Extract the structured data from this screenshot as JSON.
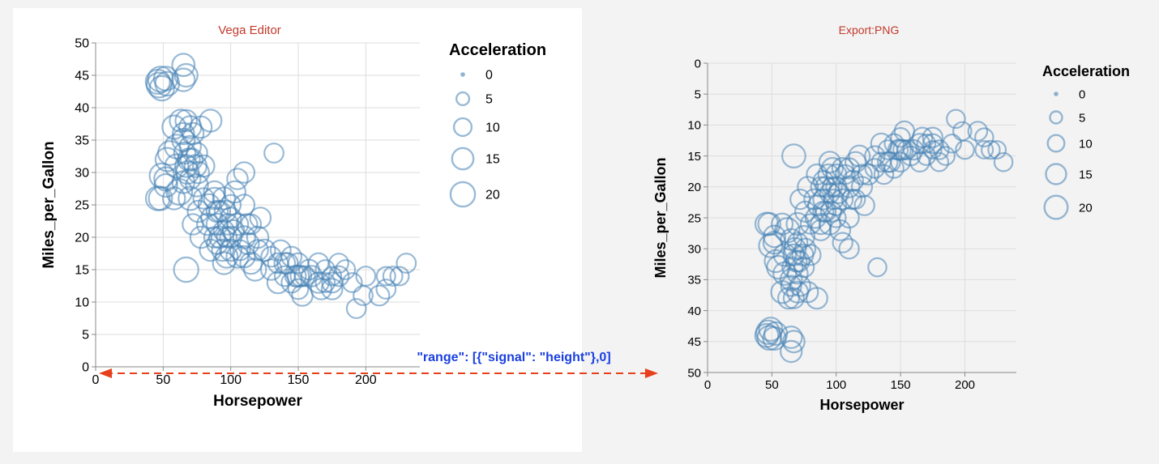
{
  "annotation": {
    "text": "\"range\": [{\"signal\": \"height\"},0]",
    "arrow_color": "#e8401c",
    "text_color": "#1a3fe0"
  },
  "colors": {
    "point_stroke": "#4682b4",
    "panel_title": "#c0392b",
    "left_panel_bg": "#ffffff",
    "right_panel_bg": "#f3f3f3"
  },
  "chart_data": [
    {
      "type": "scatter",
      "title": "Vega Editor",
      "xlabel": "Horsepower",
      "ylabel": "Miles_per_Gallon",
      "xlim": [
        0,
        240
      ],
      "ylim": [
        0,
        50
      ],
      "y_reversed": false,
      "grid": true,
      "x_ticks": [
        "0",
        "50",
        "100",
        "150",
        "200"
      ],
      "y_ticks": [
        "0",
        "5",
        "10",
        "15",
        "20",
        "25",
        "30",
        "35",
        "40",
        "45",
        "50"
      ],
      "legend": {
        "title": "Acceleration",
        "position": "right",
        "labels": [
          "0",
          "5",
          "10",
          "15",
          "20"
        ],
        "values": [
          0,
          5,
          10,
          15,
          20
        ]
      },
      "size_field": "Acceleration",
      "points": [
        [
          46,
          44,
          19.5
        ],
        [
          47,
          43.5,
          20.5
        ],
        [
          48,
          44.4,
          21
        ],
        [
          49,
          43,
          20
        ],
        [
          52,
          44.5,
          19
        ],
        [
          53,
          43.7,
          19
        ],
        [
          65,
          44.3,
          17
        ],
        [
          65,
          46.6,
          16.5
        ],
        [
          67,
          45,
          17
        ],
        [
          46,
          26,
          19
        ],
        [
          48,
          26,
          18
        ],
        [
          49,
          29.5,
          20
        ],
        [
          52,
          29,
          18
        ],
        [
          53,
          32,
          18
        ],
        [
          55,
          33,
          19
        ],
        [
          58,
          37,
          18
        ],
        [
          60,
          34,
          19
        ],
        [
          60,
          31,
          18
        ],
        [
          62,
          27,
          22
        ],
        [
          63,
          38,
          16
        ],
        [
          65,
          35,
          17
        ],
        [
          65,
          28.5,
          16
        ],
        [
          65,
          36,
          15
        ],
        [
          66,
          33,
          15
        ],
        [
          67,
          31,
          16
        ],
        [
          67,
          38,
          15
        ],
        [
          68,
          30,
          17
        ],
        [
          69,
          32,
          16
        ],
        [
          70,
          34,
          15
        ],
        [
          70,
          29,
          14
        ],
        [
          70,
          37,
          16
        ],
        [
          70,
          26,
          18
        ],
        [
          71,
          32,
          16
        ],
        [
          72,
          36,
          15
        ],
        [
          74,
          31,
          16
        ],
        [
          75,
          28,
          16
        ],
        [
          75,
          33,
          14
        ],
        [
          76,
          30,
          15
        ],
        [
          78,
          37,
          15
        ],
        [
          80,
          31,
          15
        ],
        [
          85,
          38,
          16
        ],
        [
          88,
          27,
          15
        ],
        [
          90,
          24,
          15
        ],
        [
          67,
          15,
          20
        ],
        [
          52,
          28,
          17
        ],
        [
          58,
          26,
          16
        ],
        [
          72,
          22,
          14
        ],
        [
          76,
          24,
          15
        ],
        [
          78,
          20,
          15
        ],
        [
          80,
          26,
          14
        ],
        [
          83,
          22,
          15
        ],
        [
          84,
          25,
          15
        ],
        [
          85,
          18,
          15
        ],
        [
          86,
          23,
          15
        ],
        [
          88,
          20,
          14
        ],
        [
          88,
          26,
          15
        ],
        [
          90,
          19,
          14
        ],
        [
          90,
          22,
          15
        ],
        [
          92,
          20,
          15
        ],
        [
          92,
          24,
          14
        ],
        [
          94,
          18,
          15
        ],
        [
          95,
          21,
          14
        ],
        [
          95,
          26,
          16
        ],
        [
          95,
          16,
          16
        ],
        [
          96,
          24,
          15
        ],
        [
          97,
          20,
          13
        ],
        [
          97,
          17,
          16
        ],
        [
          98,
          22,
          14
        ],
        [
          100,
          18,
          15
        ],
        [
          100,
          20,
          15
        ],
        [
          100,
          23,
          14
        ],
        [
          100,
          25,
          13
        ],
        [
          102,
          21,
          15
        ],
        [
          103,
          27,
          15
        ],
        [
          105,
          22,
          15
        ],
        [
          105,
          17,
          16
        ],
        [
          105,
          29,
          14
        ],
        [
          107,
          18,
          13
        ],
        [
          110,
          20,
          16
        ],
        [
          110,
          25,
          14
        ],
        [
          110,
          30,
          14
        ],
        [
          110,
          17,
          15
        ],
        [
          112,
          22,
          14
        ],
        [
          113,
          19,
          15
        ],
        [
          115,
          16,
          15
        ],
        [
          115,
          22,
          13
        ],
        [
          118,
          15,
          16
        ],
        [
          120,
          18,
          14
        ],
        [
          120,
          20,
          15
        ],
        [
          122,
          23,
          14
        ],
        [
          125,
          18,
          15
        ],
        [
          130,
          17,
          13
        ],
        [
          130,
          15,
          14
        ],
        [
          135,
          16,
          13
        ],
        [
          132,
          33,
          12
        ],
        [
          135,
          13,
          15
        ],
        [
          137,
          18,
          13
        ],
        [
          140,
          14,
          13
        ],
        [
          140,
          16,
          14
        ],
        [
          142,
          16,
          14
        ],
        [
          145,
          17,
          13
        ],
        [
          145,
          13,
          13
        ],
        [
          148,
          14,
          14
        ],
        [
          150,
          14,
          15
        ],
        [
          150,
          12,
          13
        ],
        [
          150,
          16,
          13
        ],
        [
          152,
          14,
          14
        ],
        [
          153,
          11,
          14
        ],
        [
          155,
          14,
          13
        ],
        [
          158,
          15,
          13
        ],
        [
          160,
          14,
          14
        ],
        [
          165,
          13,
          14
        ],
        [
          165,
          16,
          13
        ],
        [
          167,
          12,
          14
        ],
        [
          170,
          13,
          12
        ],
        [
          170,
          15,
          12
        ],
        [
          175,
          13,
          13
        ],
        [
          175,
          14,
          11
        ],
        [
          175,
          12,
          14
        ],
        [
          180,
          14,
          13
        ],
        [
          180,
          16,
          12
        ],
        [
          185,
          15,
          12
        ],
        [
          190,
          13,
          12
        ],
        [
          193,
          9,
          12
        ],
        [
          198,
          11,
          12
        ],
        [
          200,
          14,
          12
        ],
        [
          210,
          11,
          13
        ],
        [
          215,
          12,
          12
        ],
        [
          215,
          14,
          11
        ],
        [
          220,
          14,
          12
        ],
        [
          225,
          14,
          11
        ],
        [
          230,
          16,
          12
        ]
      ]
    },
    {
      "type": "scatter",
      "title": "Export:PNG",
      "xlabel": "Horsepower",
      "ylabel": "Miles_per_Gallon",
      "xlim": [
        0,
        240
      ],
      "ylim": [
        0,
        50
      ],
      "y_reversed": true,
      "grid": true,
      "x_ticks": [
        "0",
        "50",
        "100",
        "150",
        "200"
      ],
      "y_ticks": [
        "0",
        "5",
        "10",
        "15",
        "20",
        "25",
        "30",
        "35",
        "40",
        "45",
        "50"
      ],
      "legend": {
        "title": "Acceleration",
        "position": "right",
        "labels": [
          "0",
          "5",
          "10",
          "15",
          "20"
        ],
        "values": [
          0,
          5,
          10,
          15,
          20
        ]
      },
      "size_field": "Acceleration",
      "points_same_as_first": true
    }
  ]
}
